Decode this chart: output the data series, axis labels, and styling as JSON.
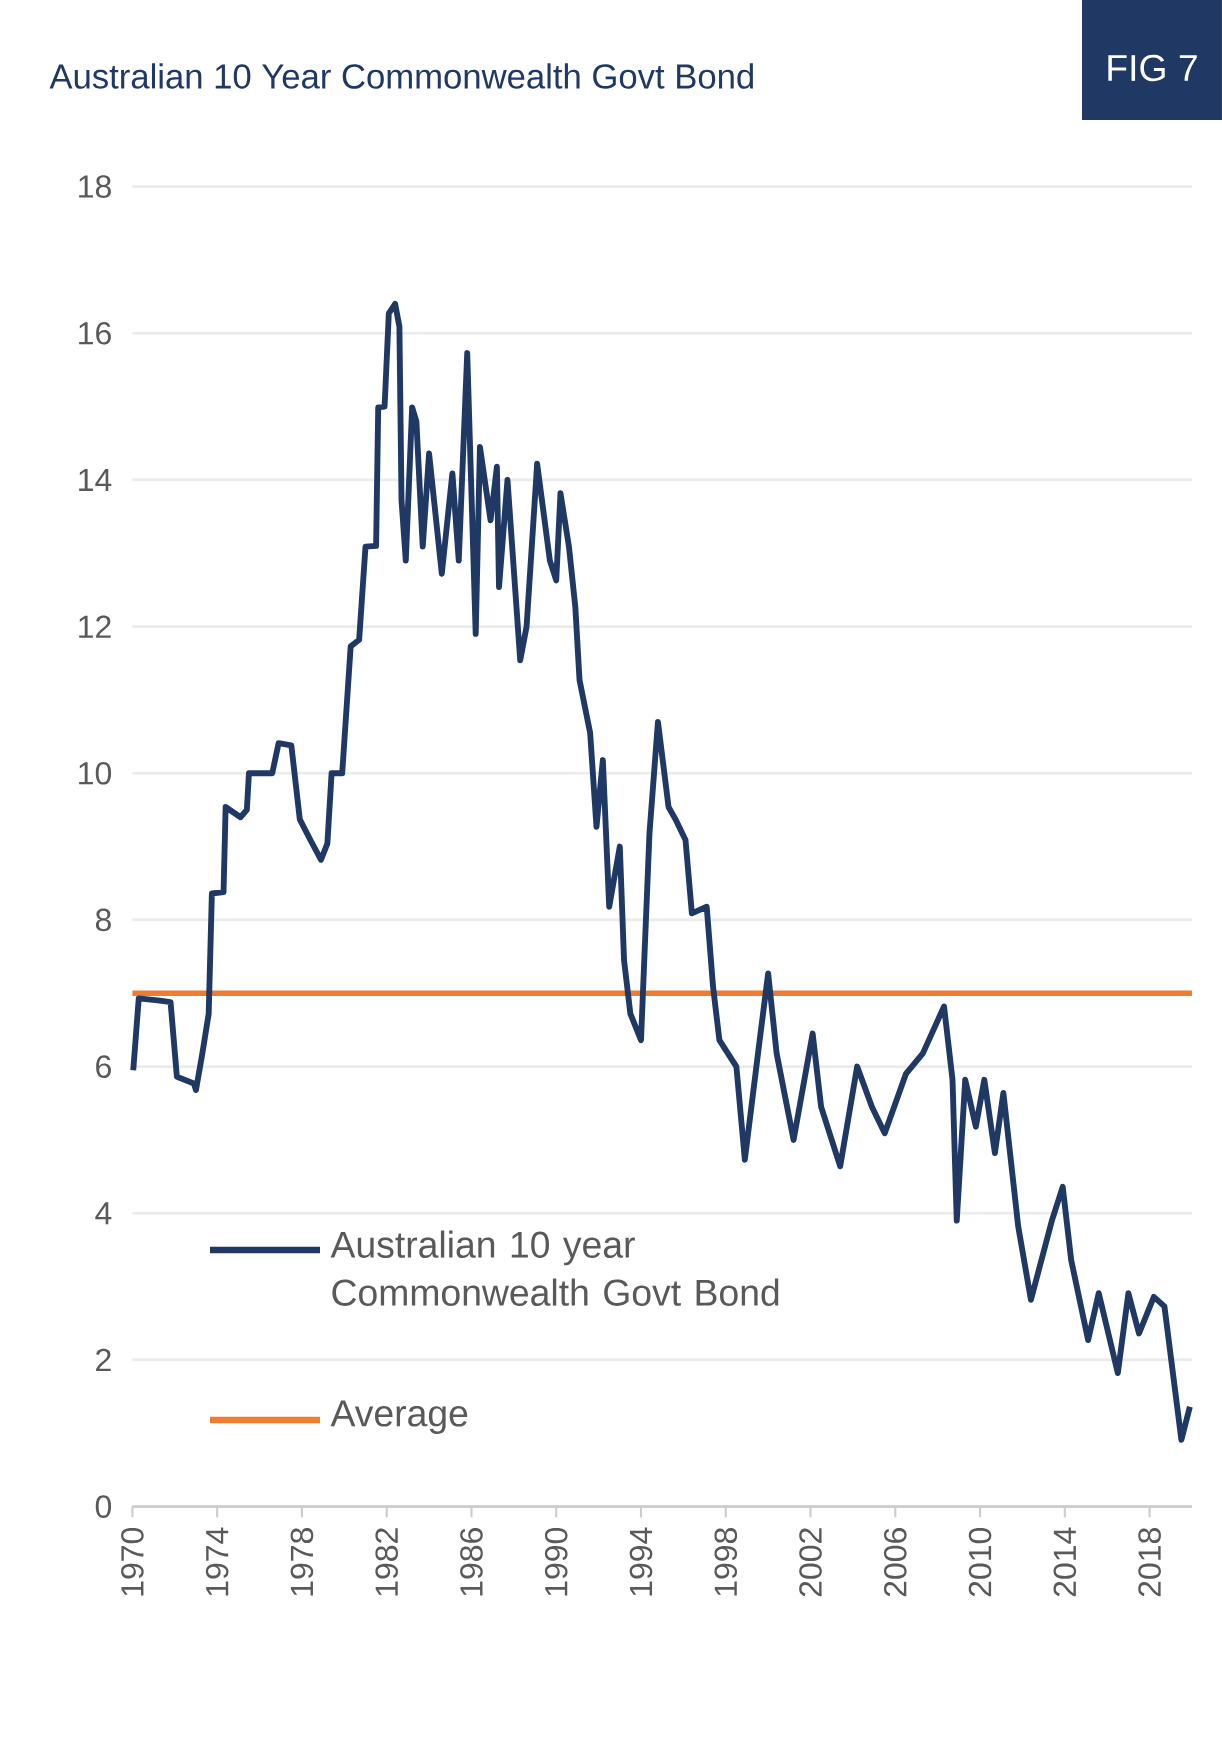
{
  "chart_data": {
    "type": "line",
    "title": "Australian 10 Year Commonwealth Govt Bond",
    "annotations": [
      "FIG 7"
    ],
    "x": [
      1970.04,
      1970.3,
      1971.3,
      1971.8,
      1972.1,
      1972.9,
      1973.0,
      1973.3,
      1973.6,
      1973.75,
      1974.3,
      1974.4,
      1975.1,
      1975.4,
      1975.5,
      1976.6,
      1976.9,
      1977.5,
      1977.9,
      1978.4,
      1978.9,
      1979.2,
      1979.4,
      1979.9,
      1980.3,
      1980.7,
      1981.0,
      1981.5,
      1981.6,
      1981.9,
      1982.1,
      1982.4,
      1982.6,
      1982.7,
      1982.9,
      1983.2,
      1983.4,
      1983.7,
      1984.0,
      1984.6,
      1985.1,
      1985.4,
      1985.8,
      1986.2,
      1986.4,
      1986.9,
      1987.2,
      1987.3,
      1987.7,
      1988.3,
      1988.6,
      1989.1,
      1989.7,
      1990.0,
      1990.2,
      1990.6,
      1990.9,
      1991.1,
      1991.6,
      1991.9,
      1992.2,
      1992.5,
      1993.0,
      1993.2,
      1993.5,
      1994.0,
      1994.4,
      1994.8,
      1995.3,
      1995.65,
      1996.1,
      1996.4,
      1997.1,
      1997.4,
      1997.7,
      1998.5,
      1998.9,
      1999.6,
      2000.0,
      2000.4,
      2001.2,
      2002.1,
      2002.5,
      2003.4,
      2004.2,
      2004.9,
      2005.5,
      2006.5,
      2007.3,
      2008.3,
      2008.7,
      2008.9,
      2009.3,
      2009.8,
      2010.2,
      2010.7,
      2011.1,
      2011.8,
      2012.4,
      2013.4,
      2013.9,
      2014.3,
      2015.1,
      2015.6,
      2016.5,
      2017.0,
      2017.5,
      2018.2,
      2018.7,
      2019.5,
      2019.9
    ],
    "series": [
      {
        "name": "Australian 10 year Commonwealth Govt Bond",
        "color": "#1f3864",
        "values": [
          5.95,
          6.93,
          6.9,
          6.88,
          5.86,
          5.77,
          5.68,
          6.18,
          6.72,
          8.36,
          8.38,
          9.54,
          9.4,
          9.5,
          10.0,
          10.0,
          10.41,
          10.38,
          9.37,
          9.09,
          8.82,
          9.04,
          10.0,
          10.0,
          11.73,
          11.82,
          13.09,
          13.1,
          14.99,
          15.0,
          16.27,
          16.4,
          16.09,
          13.72,
          12.9,
          14.99,
          14.8,
          13.09,
          14.36,
          12.72,
          14.09,
          12.9,
          15.73,
          11.9,
          14.45,
          13.45,
          14.18,
          12.54,
          14.0,
          11.54,
          12.0,
          14.22,
          12.9,
          12.63,
          13.82,
          13.09,
          12.27,
          11.27,
          10.55,
          9.27,
          10.18,
          8.18,
          9.0,
          7.45,
          6.72,
          6.36,
          9.18,
          10.7,
          9.54,
          9.36,
          9.09,
          8.09,
          8.18,
          7.09,
          6.36,
          6.0,
          4.73,
          6.36,
          7.27,
          6.18,
          5.0,
          6.45,
          5.45,
          4.64,
          6.0,
          5.45,
          5.09,
          5.9,
          6.18,
          6.82,
          5.82,
          3.9,
          5.82,
          5.18,
          5.82,
          4.82,
          5.64,
          3.82,
          2.82,
          3.91,
          4.36,
          3.36,
          2.27,
          2.91,
          1.82,
          2.91,
          2.36,
          2.86,
          2.73,
          0.91,
          1.36
        ]
      }
    ],
    "ref_lines": [
      {
        "axis": "y",
        "value": 7,
        "label": "Average",
        "color": "#ed7d31"
      }
    ],
    "xlim": [
      1970,
      2020
    ],
    "xticks": [
      1970,
      1974,
      1978,
      1982,
      1986,
      1990,
      1994,
      1998,
      2002,
      2006,
      2010,
      2014,
      2018
    ],
    "ylim": [
      0,
      18
    ],
    "yticks": [
      0,
      2,
      4,
      6,
      8,
      10,
      12,
      14,
      16,
      18
    ],
    "grid": "y",
    "legend": "bottom left"
  }
}
